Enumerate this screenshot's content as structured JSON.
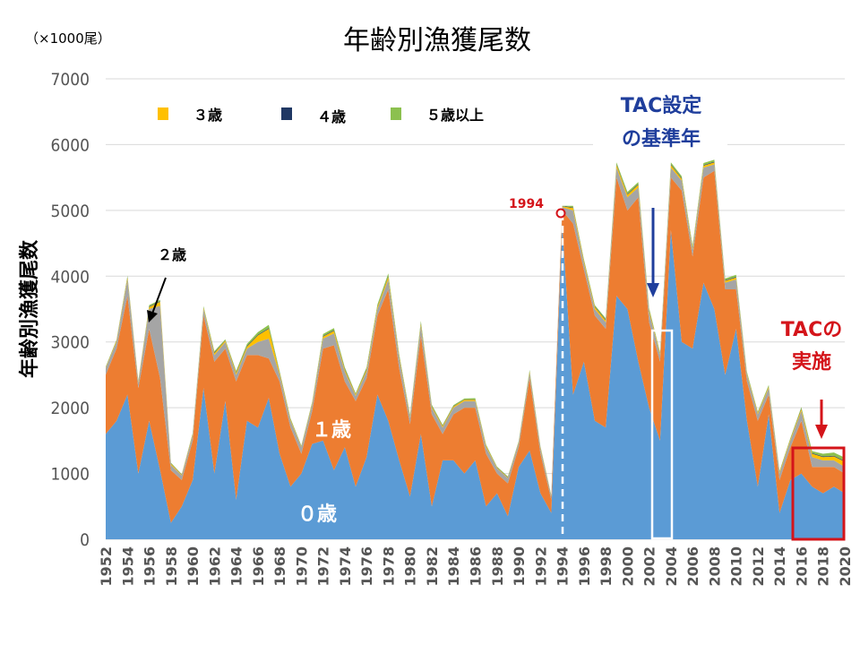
{
  "chart_data": {
    "type": "area",
    "stacked": true,
    "title": "年齢別漁獲尾数",
    "unit": "（×1000尾）",
    "ylabel": "年齢別漁獲尾数",
    "ylim": [
      0,
      7000
    ],
    "yticks": [
      0,
      1000,
      2000,
      3000,
      4000,
      5000,
      6000,
      7000
    ],
    "xlim": [
      1952,
      2020
    ],
    "xticks": [
      1952,
      1954,
      1956,
      1958,
      1960,
      1962,
      1964,
      1966,
      1968,
      1970,
      1972,
      1974,
      1976,
      1978,
      1980,
      1982,
      1984,
      1986,
      1988,
      1990,
      1992,
      1994,
      1996,
      1998,
      2000,
      2002,
      2004,
      2006,
      2008,
      2010,
      2012,
      2014,
      2016,
      2018,
      2020
    ],
    "x": [
      1952,
      1953,
      1954,
      1955,
      1956,
      1957,
      1958,
      1959,
      1960,
      1961,
      1962,
      1963,
      1964,
      1965,
      1966,
      1967,
      1968,
      1969,
      1970,
      1971,
      1972,
      1973,
      1974,
      1975,
      1976,
      1977,
      1978,
      1979,
      1980,
      1981,
      1982,
      1983,
      1984,
      1985,
      1986,
      1987,
      1988,
      1989,
      1990,
      1991,
      1992,
      1993,
      1994,
      1995,
      1996,
      1997,
      1998,
      1999,
      2000,
      2001,
      2002,
      2003,
      2004,
      2005,
      2006,
      2007,
      2008,
      2009,
      2010,
      2011,
      2012,
      2013,
      2014,
      2015,
      2016,
      2017,
      2018,
      2019,
      2020
    ],
    "series": [
      {
        "name": "0歳",
        "color": "#5b9bd5",
        "values": [
          1600,
          1800,
          2200,
          1000,
          1800,
          1050,
          250,
          500,
          900,
          2300,
          1000,
          2100,
          600,
          1800,
          1700,
          2150,
          1300,
          800,
          1000,
          1450,
          1500,
          1050,
          1400,
          800,
          1250,
          2200,
          1800,
          1200,
          650,
          1600,
          500,
          1200,
          1200,
          1000,
          1200,
          500,
          700,
          350,
          1100,
          1350,
          700,
          400,
          4800,
          2200,
          2700,
          1800,
          1700,
          3700,
          3500,
          2700,
          2000,
          1500,
          4700,
          3000,
          2900,
          3900,
          3500,
          2500,
          3200,
          1800,
          800,
          1900,
          400,
          900,
          1000,
          800,
          700,
          800,
          700
        ]
      },
      {
        "name": "1歳",
        "color": "#ed7d31",
        "values": [
          900,
          1100,
          1500,
          1300,
          1400,
          1400,
          800,
          400,
          600,
          1100,
          1700,
          800,
          1800,
          1000,
          1100,
          600,
          1100,
          900,
          300,
          500,
          1400,
          1900,
          1000,
          1300,
          1200,
          1200,
          2000,
          1400,
          1100,
          1500,
          1400,
          400,
          700,
          1000,
          800,
          800,
          300,
          500,
          300,
          1100,
          600,
          200,
          200,
          2600,
          1400,
          1600,
          1500,
          1800,
          1500,
          2500,
          1300,
          1200,
          800,
          2300,
          1400,
          1600,
          2100,
          1300,
          600,
          600,
          1000,
          300,
          500,
          500,
          800,
          300,
          400,
          300,
          300
        ]
      },
      {
        "name": "2歳",
        "color": "#a5a5a5",
        "values": [
          100,
          100,
          250,
          80,
          300,
          1100,
          80,
          70,
          80,
          100,
          100,
          100,
          100,
          100,
          200,
          300,
          100,
          100,
          100,
          100,
          150,
          180,
          150,
          80,
          100,
          100,
          150,
          150,
          100,
          150,
          100,
          100,
          100,
          100,
          100,
          100,
          80,
          80,
          70,
          80,
          80,
          50,
          50,
          200,
          100,
          100,
          100,
          150,
          200,
          150,
          150,
          100,
          150,
          150,
          100,
          150,
          100,
          100,
          150,
          100,
          100,
          100,
          100,
          100,
          150,
          150,
          100,
          100,
          100
        ]
      },
      {
        "name": "3歳",
        "color": "#ffc000",
        "values": [
          10,
          20,
          30,
          20,
          30,
          60,
          20,
          10,
          20,
          20,
          30,
          20,
          30,
          30,
          100,
          150,
          30,
          20,
          10,
          20,
          30,
          40,
          30,
          20,
          30,
          30,
          40,
          30,
          20,
          30,
          20,
          20,
          20,
          20,
          20,
          20,
          10,
          10,
          10,
          20,
          20,
          10,
          10,
          40,
          30,
          30,
          30,
          40,
          40,
          40,
          30,
          20,
          40,
          30,
          30,
          30,
          30,
          30,
          30,
          20,
          20,
          20,
          20,
          20,
          30,
          50,
          50,
          60,
          80
        ]
      },
      {
        "name": "4歳",
        "color": "#203864",
        "values": [
          5,
          5,
          10,
          5,
          10,
          10,
          5,
          5,
          5,
          5,
          10,
          5,
          10,
          10,
          10,
          10,
          10,
          5,
          5,
          5,
          10,
          10,
          10,
          5,
          10,
          10,
          10,
          10,
          5,
          10,
          5,
          5,
          5,
          5,
          5,
          5,
          5,
          5,
          5,
          5,
          5,
          5,
          5,
          10,
          10,
          10,
          10,
          10,
          10,
          10,
          10,
          5,
          10,
          10,
          10,
          10,
          10,
          10,
          10,
          5,
          5,
          5,
          5,
          5,
          10,
          10,
          10,
          10,
          10
        ]
      },
      {
        "name": "5歳以上",
        "color": "#8cc04f",
        "values": [
          10,
          10,
          20,
          10,
          20,
          20,
          10,
          5,
          10,
          20,
          20,
          15,
          20,
          30,
          40,
          50,
          20,
          15,
          10,
          15,
          30,
          30,
          25,
          15,
          25,
          30,
          40,
          25,
          20,
          30,
          20,
          15,
          15,
          15,
          20,
          15,
          10,
          10,
          10,
          20,
          10,
          5,
          5,
          20,
          20,
          20,
          20,
          30,
          30,
          30,
          25,
          20,
          30,
          30,
          25,
          30,
          30,
          25,
          30,
          20,
          15,
          20,
          15,
          15,
          20,
          30,
          40,
          50,
          50
        ]
      }
    ],
    "legend": [
      "３歳",
      "４歳",
      "５歳以上"
    ],
    "annotations": {
      "age0": "０歳",
      "age1": "１歳",
      "age2": "２歳",
      "year_marker": "1994",
      "tac_base_line1": "TAC設定",
      "tac_base_line2": "の基準年",
      "tac_impl_line1": "TACの",
      "tac_impl_line2": "実施"
    }
  }
}
